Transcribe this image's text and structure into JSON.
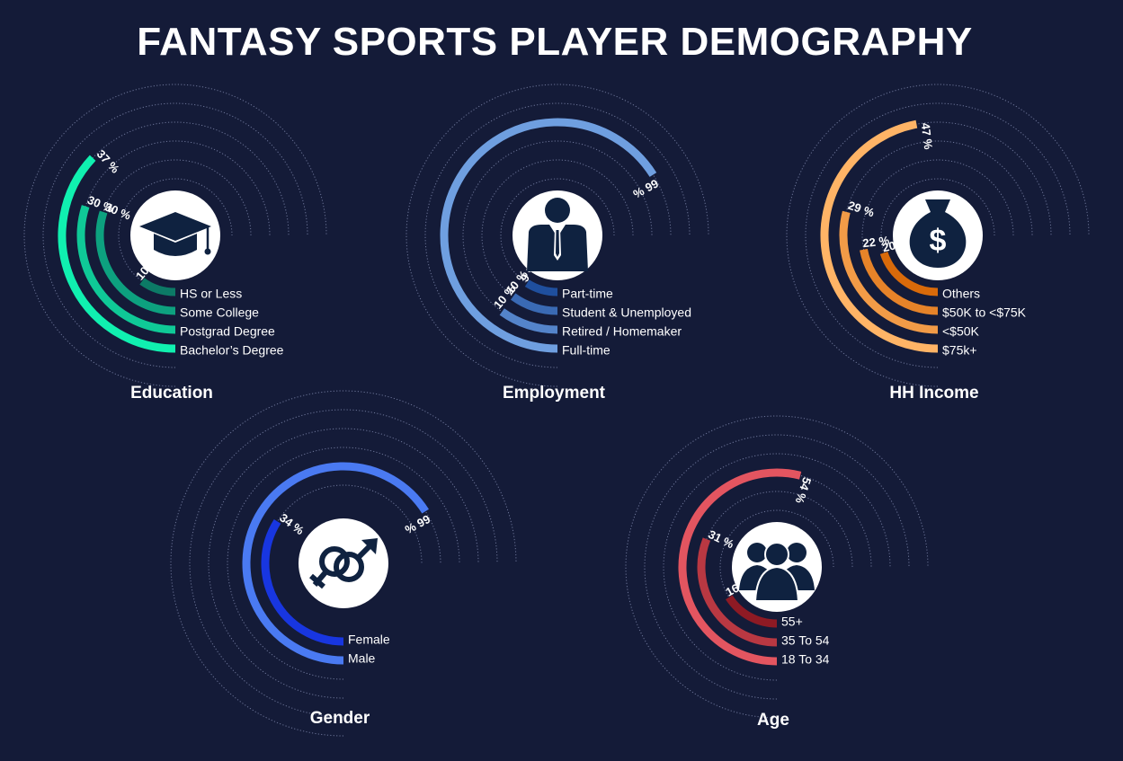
{
  "header": {
    "title": "FANTASY SPORTS PLAYER DEMOGRAPHY"
  },
  "chart_data": [
    {
      "type": "radial-bar",
      "title": "Education",
      "icon": "graduation-cap-icon",
      "unit": "%",
      "color_dark": "#0c7a66",
      "color_light": "#10f0b0",
      "categories": [
        "HS or Less",
        "Some College",
        "Postgrad Degree",
        "Bachelor’s Degree"
      ],
      "values": [
        10,
        30,
        30,
        37
      ],
      "value_labels": [
        "10 %",
        "30 %",
        "30 %",
        "37 %"
      ]
    },
    {
      "type": "radial-bar",
      "title": "Employment",
      "icon": "businessman-icon",
      "unit": "%",
      "color_dark": "#1f4f9e",
      "color_light": "#6f9fe0",
      "categories": [
        "Part-time",
        "Student & Unemployed",
        "Retired / Homemaker",
        "Full-time"
      ],
      "values": [
        9,
        10,
        10,
        66
      ],
      "value_labels": [
        "9 %",
        "10 %",
        "10 %",
        "66 %"
      ]
    },
    {
      "type": "radial-bar",
      "title": "HH Income",
      "icon": "money-bag-icon",
      "unit": "%",
      "color_dark": "#d96a0a",
      "color_light": "#ffb466",
      "categories": [
        "Others",
        "$50K to <$75K",
        "<$50K",
        "$75k+"
      ],
      "values": [
        20,
        22,
        29,
        47
      ],
      "value_labels": [
        "20 %",
        "22 %",
        "29 %",
        "47 %"
      ]
    },
    {
      "type": "radial-bar",
      "title": "Gender",
      "icon": "gender-icon",
      "unit": "%",
      "color_dark": "#1836e0",
      "color_light": "#4a7af2",
      "categories": [
        "Female",
        "Male"
      ],
      "values": [
        34,
        66
      ],
      "value_labels": [
        "34 %",
        "66 %"
      ]
    },
    {
      "type": "radial-bar",
      "title": "Age",
      "icon": "people-group-icon",
      "unit": "%",
      "color_dark": "#8e1a24",
      "color_light": "#e35560",
      "categories": [
        "55+",
        "35 To 54",
        "18 To 34"
      ],
      "values": [
        16,
        31,
        54
      ],
      "value_labels": [
        "16 %",
        "31 %",
        "54 %"
      ]
    }
  ]
}
